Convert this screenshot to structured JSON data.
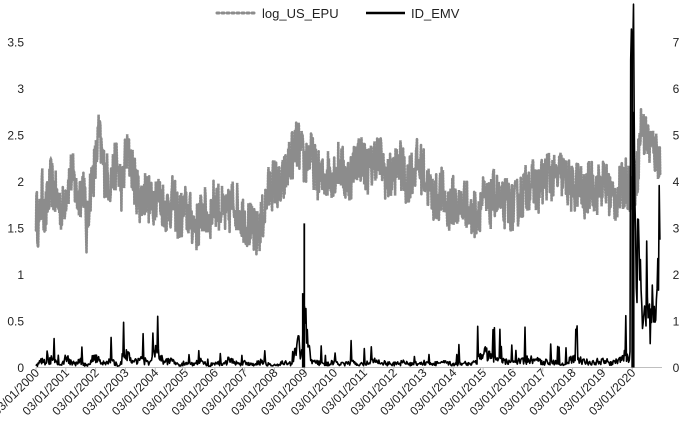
{
  "chart_data": {
    "type": "line",
    "legend_position": "top",
    "grid": false,
    "x_tick_labels": [
      "03/01/2000",
      "03/01/2001",
      "03/01/2002",
      "03/01/2003",
      "03/01/2004",
      "03/01/2005",
      "03/01/2006",
      "03/01/2007",
      "03/01/2008",
      "03/01/2009",
      "03/01/2010",
      "03/01/2011",
      "03/01/2012",
      "03/01/2013",
      "03/01/2014",
      "03/01/2015",
      "03/01/2016",
      "03/01/2017",
      "03/01/2018",
      "03/01/2019",
      "03/01/2020"
    ],
    "y_left": {
      "ticks": [
        "0",
        "0.5",
        "1",
        "1.5",
        "2",
        "2.5",
        "3",
        "3.5"
      ],
      "ylim": [
        0,
        3.5
      ]
    },
    "y_right": {
      "ticks": [
        "0",
        "1",
        "2",
        "3",
        "4",
        "5",
        "6",
        "7"
      ],
      "ylim": [
        0,
        7
      ]
    },
    "x_range": [
      2000.0,
      2021.0
    ],
    "series": [
      {
        "name": "log_US_EPU",
        "axis": "left",
        "style": "dotted",
        "color": "#8c8c8c",
        "x": [
          2000.0,
          2000.1,
          2000.2,
          2000.3,
          2000.5,
          2000.7,
          2000.9,
          2001.0,
          2001.2,
          2001.4,
          2001.6,
          2001.7,
          2001.8,
          2002.0,
          2002.1,
          2002.3,
          2002.5,
          2002.7,
          2002.9,
          2003.0,
          2003.2,
          2003.3,
          2003.5,
          2003.7,
          2003.9,
          2004.0,
          2004.2,
          2004.4,
          2004.6,
          2004.8,
          2005.0,
          2005.2,
          2005.4,
          2005.6,
          2005.8,
          2006.0,
          2006.2,
          2006.4,
          2006.6,
          2006.8,
          2007.0,
          2007.2,
          2007.4,
          2007.6,
          2007.8,
          2008.0,
          2008.2,
          2008.4,
          2008.6,
          2008.8,
          2009.0,
          2009.2,
          2009.4,
          2009.6,
          2009.8,
          2010.0,
          2010.2,
          2010.4,
          2010.6,
          2010.8,
          2011.0,
          2011.2,
          2011.4,
          2011.6,
          2011.8,
          2012.0,
          2012.2,
          2012.4,
          2012.6,
          2012.8,
          2013.0,
          2013.2,
          2013.4,
          2013.6,
          2013.8,
          2014.0,
          2014.2,
          2014.4,
          2014.6,
          2014.8,
          2015.0,
          2015.2,
          2015.4,
          2015.6,
          2015.8,
          2016.0,
          2016.2,
          2016.4,
          2016.6,
          2016.8,
          2017.0,
          2017.2,
          2017.4,
          2017.6,
          2017.8,
          2018.0,
          2018.2,
          2018.4,
          2018.6,
          2018.8,
          2019.0,
          2019.2,
          2019.4,
          2019.6,
          2019.8,
          2020.0,
          2020.1,
          2020.2,
          2020.3,
          2020.4,
          2020.6,
          2020.8,
          2021.0
        ],
        "y": [
          1.7,
          1.5,
          1.9,
          1.6,
          2.0,
          1.8,
          1.7,
          1.9,
          2.1,
          1.8,
          2.0,
          1.4,
          1.9,
          2.2,
          2.5,
          2.1,
          2.0,
          2.2,
          1.9,
          2.3,
          2.2,
          2.0,
          1.8,
          1.9,
          1.7,
          1.9,
          1.8,
          1.7,
          1.8,
          1.6,
          1.7,
          1.6,
          1.5,
          1.7,
          1.6,
          1.8,
          1.7,
          1.6,
          1.8,
          1.7,
          1.6,
          1.5,
          1.4,
          1.6,
          1.9,
          2.0,
          1.9,
          2.1,
          2.3,
          2.4,
          2.2,
          2.3,
          2.1,
          2.0,
          2.1,
          2.1,
          2.2,
          2.0,
          2.1,
          2.3,
          2.2,
          2.1,
          2.3,
          2.2,
          2.0,
          2.1,
          2.2,
          2.0,
          2.1,
          2.2,
          2.1,
          1.9,
          1.8,
          1.9,
          1.7,
          1.8,
          1.7,
          1.8,
          1.6,
          1.7,
          1.8,
          1.7,
          1.9,
          1.7,
          1.8,
          1.7,
          1.8,
          1.9,
          2.0,
          1.9,
          2.0,
          2.1,
          2.0,
          2.1,
          2.0,
          1.9,
          2.0,
          1.8,
          2.0,
          1.9,
          2.0,
          1.9,
          1.8,
          1.9,
          2.0,
          1.9,
          2.0,
          2.2,
          2.6,
          2.5,
          2.4,
          2.3,
          2.2
        ]
      },
      {
        "name": "ID_EMV",
        "axis": "right",
        "style": "solid",
        "color": "#000000",
        "x": [
          2000.0,
          2000.2,
          2000.4,
          2000.5,
          2000.8,
          2001.0,
          2001.3,
          2001.5,
          2001.7,
          2002.0,
          2002.3,
          2002.5,
          2002.8,
          2003.0,
          2003.2,
          2003.5,
          2003.8,
          2004.0,
          2004.3,
          2004.5,
          2004.8,
          2005.0,
          2005.3,
          2005.5,
          2005.8,
          2006.0,
          2006.3,
          2006.5,
          2006.8,
          2007.0,
          2007.3,
          2007.6,
          2007.9,
          2008.1,
          2008.3,
          2008.6,
          2008.8,
          2008.9,
          2009.0,
          2009.2,
          2009.4,
          2009.7,
          2010.0,
          2010.3,
          2010.6,
          2011.0,
          2011.3,
          2011.6,
          2012.0,
          2012.3,
          2012.6,
          2013.0,
          2013.3,
          2013.6,
          2014.0,
          2014.3,
          2014.6,
          2015.0,
          2015.1,
          2015.3,
          2015.6,
          2016.0,
          2016.3,
          2016.6,
          2017.0,
          2017.3,
          2017.6,
          2018.0,
          2018.3,
          2018.6,
          2019.0,
          2019.3,
          2019.6,
          2019.8,
          2019.9,
          2020.0,
          2020.05,
          2020.1,
          2020.15,
          2020.2,
          2020.3,
          2020.4,
          2020.5,
          2020.6,
          2020.7,
          2020.8,
          2020.9,
          2021.0
        ],
        "y": [
          0.1,
          0.4,
          0.2,
          0.5,
          0.1,
          0.6,
          0.2,
          0.4,
          0.1,
          0.7,
          0.2,
          0.4,
          0.1,
          1.1,
          0.3,
          0.6,
          0.2,
          1.0,
          0.3,
          0.5,
          0.1,
          0.3,
          0.2,
          0.4,
          0.1,
          0.3,
          0.2,
          0.5,
          0.2,
          0.3,
          0.2,
          0.4,
          0.1,
          0.2,
          0.3,
          0.2,
          1.6,
          0.5,
          3.1,
          0.6,
          0.3,
          0.2,
          0.3,
          0.2,
          0.3,
          0.2,
          0.4,
          0.3,
          0.2,
          0.3,
          0.2,
          0.3,
          0.2,
          0.3,
          0.2,
          0.3,
          0.2,
          0.8,
          0.9,
          0.5,
          0.4,
          0.3,
          0.4,
          0.5,
          0.3,
          0.4,
          0.2,
          0.5,
          0.4,
          0.3,
          0.4,
          0.3,
          0.4,
          0.8,
          0.3,
          6.9,
          5.5,
          3.2,
          1.5,
          2.8,
          1.2,
          0.8,
          2.0,
          0.9,
          1.4,
          0.7,
          3.0,
          1.2
        ]
      }
    ]
  }
}
